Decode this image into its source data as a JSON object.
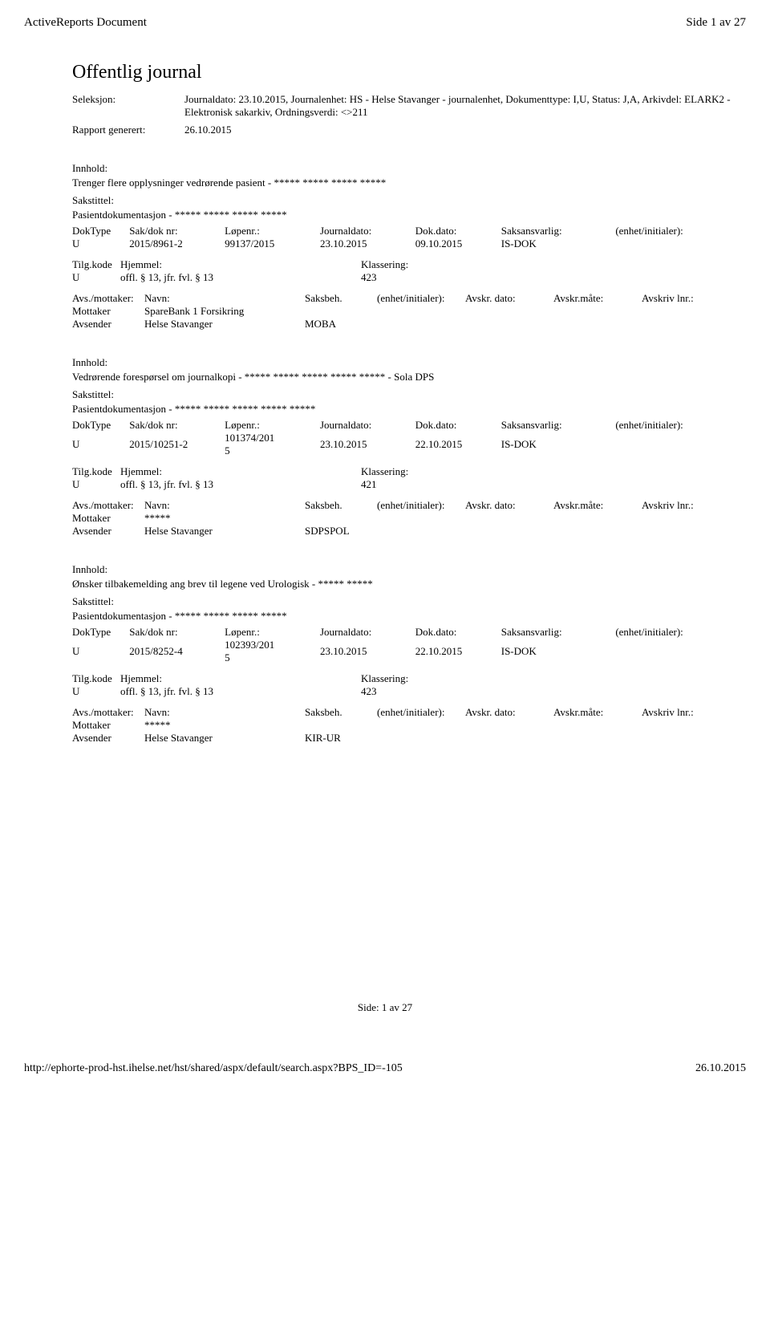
{
  "header": {
    "left": "ActiveReports Document",
    "right": "Side 1 av 27"
  },
  "title": "Offentlig journal",
  "meta": {
    "seleksjon_label": "Seleksjon:",
    "seleksjon_value": "Journaldato: 23.10.2015, Journalenhet: HS - Helse Stavanger - journalenhet, Dokumenttype: I,U, Status: J,A, Arkivdel: ELARK2 - Elektronisk sakarkiv, Ordningsverdi: <>211",
    "rapport_label": "Rapport generert:",
    "rapport_value": "26.10.2015"
  },
  "labels": {
    "innhold": "Innhold:",
    "sakstittel": "Sakstittel:",
    "doktype": "DokType",
    "saknr": "Sak/dok nr:",
    "lopenr": "Løpenr.:",
    "journaldato": "Journaldato:",
    "dokdato": "Dok.dato:",
    "saksansvarlig": "Saksansvarlig:",
    "enhet": "(enhet/initialer):",
    "tilgkode": "Tilg.kode",
    "hjemmel": "Hjemmel:",
    "klassering": "Klassering:",
    "avsmottaker": "Avs./mottaker:",
    "navn": "Navn:",
    "saksbeh": "Saksbeh.",
    "enhet2": "(enhet/initialer):",
    "avskrdato": "Avskr. dato:",
    "avskrmate": "Avskr.måte:",
    "avskrivlnr": "Avskriv lnr.:"
  },
  "records": [
    {
      "innhold": "Trenger flere opplysninger vedrørende pasient - ***** ***** ***** *****",
      "sakstittel": "Pasientdokumentasjon - ***** ***** ***** *****",
      "doktype": "U",
      "saknr": "2015/8961-2",
      "lopenr": "99137/2015",
      "journaldato": "23.10.2015",
      "dokdato": "09.10.2015",
      "saksansvarlig": "IS-DOK",
      "enhet": "",
      "tilgkode": "U",
      "hjemmel": "offl. § 13, jfr. fvl. § 13",
      "klassering": "423",
      "parties": [
        {
          "role": "Mottaker",
          "navn": "SpareBank 1 Forsikring",
          "saksbeh": ""
        },
        {
          "role": "Avsender",
          "navn": "Helse Stavanger",
          "saksbeh": "MOBA"
        }
      ]
    },
    {
      "innhold": "Vedrørende forespørsel om journalkopi - ***** ***** ***** ***** ***** - Sola DPS",
      "sakstittel": "Pasientdokumentasjon - ***** ***** ***** ***** *****",
      "doktype": "U",
      "saknr": "2015/10251-2",
      "lopenr": "101374/2015",
      "journaldato": "23.10.2015",
      "dokdato": "22.10.2015",
      "saksansvarlig": "IS-DOK",
      "enhet": "",
      "tilgkode": "U",
      "hjemmel": "offl. § 13, jfr. fvl. § 13",
      "klassering": "421",
      "parties": [
        {
          "role": "Mottaker",
          "navn": "*****",
          "saksbeh": ""
        },
        {
          "role": "Avsender",
          "navn": "Helse Stavanger",
          "saksbeh": "SDPSPOL"
        }
      ]
    },
    {
      "innhold": "Ønsker tilbakemelding ang brev til legene ved  Urologisk - ***** *****",
      "sakstittel": "Pasientdokumentasjon - ***** ***** ***** *****",
      "doktype": "U",
      "saknr": "2015/8252-4",
      "lopenr": "102393/2015",
      "journaldato": "23.10.2015",
      "dokdato": "22.10.2015",
      "saksansvarlig": "IS-DOK",
      "enhet": "",
      "tilgkode": "U",
      "hjemmel": "offl. § 13, jfr. fvl. § 13",
      "klassering": "423",
      "parties": [
        {
          "role": "Mottaker",
          "navn": "*****",
          "saksbeh": ""
        },
        {
          "role": "Avsender",
          "navn": "Helse Stavanger",
          "saksbeh": "KIR-UR"
        }
      ]
    }
  ],
  "footer": {
    "side_label": "Side:  1  av  27",
    "url": "http://ephorte-prod-hst.ihelse.net/hst/shared/aspx/default/search.aspx?BPS_ID=-105",
    "date": "26.10.2015"
  },
  "style": {
    "background_color": "#ffffff",
    "text_color": "#000000",
    "body_fontsize": 14,
    "title_fontsize": 24
  }
}
